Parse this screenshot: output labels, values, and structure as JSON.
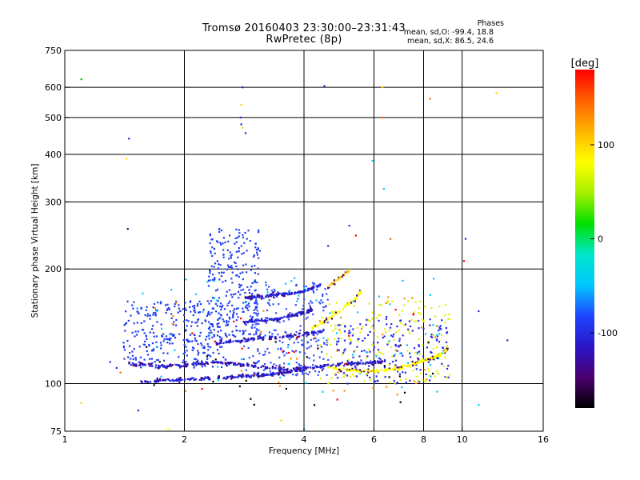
{
  "title_line1": "Tromsø 20160403 23:30:00–23:31:43",
  "title_line2": "RwPretec (8p)",
  "phases": {
    "heading": "Phases",
    "o_line": "mean, sd,O: -99.4, 18.8",
    "x_line": "mean, sd,X: 86.5, 24.6"
  },
  "chart_data": {
    "type": "scatter",
    "xlabel": "Frequency [MHz]",
    "ylabel": "Stationary phase Virtual Height [km]",
    "x_scale": "log",
    "y_scale": "log",
    "xlim": [
      1,
      16
    ],
    "ylim": [
      75,
      750
    ],
    "x_ticks": [
      1,
      2,
      4,
      6,
      8,
      10,
      16
    ],
    "y_ticks": [
      75,
      100,
      200,
      300,
      400,
      500,
      600,
      750
    ],
    "x_grid": [
      2,
      4,
      6,
      8,
      10
    ],
    "y_grid": [
      100,
      200,
      300,
      400,
      500,
      600
    ],
    "colorbar": {
      "unit": "[deg]",
      "range": [
        -180,
        180
      ],
      "ticks": [
        100,
        0,
        -100
      ],
      "colormap": [
        "#000000",
        "#4b006e",
        "#2a16c8",
        "#1e46ff",
        "#00c8ff",
        "#00e6c8",
        "#00e000",
        "#a8f000",
        "#ffff00",
        "#ffb400",
        "#ff6000",
        "#ff0000"
      ]
    },
    "traces": [
      {
        "name": "",
        "color": "#2222dd",
        "phase": -110,
        "x": [
          1.55,
          1.7,
          1.85,
          2.0,
          2.2,
          2.4,
          2.6,
          2.8,
          3.0,
          3.2,
          3.4,
          3.6,
          3.8,
          4.0
        ],
        "y": [
          101,
          101.5,
          102,
          102.5,
          103,
          103.5,
          104,
          104.5,
          105,
          105.5,
          106,
          107,
          108,
          109
        ]
      },
      {
        "name": "",
        "color": "#2222dd",
        "phase": -110,
        "x": [
          1.45,
          1.6,
          1.8,
          2.0,
          2.2,
          2.4,
          2.6,
          2.8,
          3.0,
          3.3,
          3.6,
          4.0,
          4.4,
          4.8,
          5.2,
          5.6,
          6.0,
          6.4
        ],
        "y": [
          113,
          112,
          111,
          112,
          113,
          114,
          113,
          112,
          111,
          110,
          109,
          110,
          111,
          112,
          113,
          113,
          114,
          115
        ]
      },
      {
        "name": "",
        "color": "#2222dd",
        "phase": -110,
        "x": [
          2.4,
          2.6,
          2.8,
          3.0,
          3.3,
          3.6,
          3.9,
          4.2,
          4.5
        ],
        "y": [
          128,
          129,
          130,
          131,
          132,
          133,
          134,
          136,
          138
        ]
      },
      {
        "name": "",
        "color": "#2222dd",
        "phase": -110,
        "x": [
          2.8,
          3.0,
          3.2,
          3.4,
          3.6,
          3.8,
          4.0,
          4.2
        ],
        "y": [
          145,
          146,
          147,
          148,
          150,
          152,
          154,
          157
        ]
      },
      {
        "name": "",
        "color": "#2222dd",
        "phase": -110,
        "x": [
          2.8,
          3.0,
          3.2,
          3.4,
          3.6,
          3.8,
          4.0,
          4.2,
          4.4
        ],
        "y": [
          168,
          169,
          170,
          171,
          172,
          173,
          175,
          178,
          182
        ]
      },
      {
        "name": "",
        "color": "#ffff00",
        "phase": 100,
        "x": [
          4.6,
          5.0,
          5.4,
          5.8,
          6.2,
          6.6,
          7.0,
          7.4,
          7.8,
          8.2,
          8.6,
          9.0,
          9.2
        ],
        "y": [
          110,
          109,
          108,
          108,
          108,
          109,
          110,
          112,
          114,
          116,
          118,
          121,
          124
        ]
      },
      {
        "name": "",
        "color": "#ffff00",
        "phase": 100,
        "x": [
          4.2,
          4.5,
          4.8,
          5.1,
          5.4,
          5.6
        ],
        "y": [
          140,
          146,
          152,
          160,
          168,
          176
        ]
      },
      {
        "name": "",
        "color": "#ffd21e",
        "phase": 100,
        "x": [
          4.6,
          4.8,
          5.0,
          5.2
        ],
        "y": [
          180,
          186,
          192,
          198
        ]
      }
    ],
    "clusters": [
      {
        "name": "",
        "color": "#1e3cf0",
        "phase": -105,
        "x_range": [
          1.4,
          2.6
        ],
        "y_range": [
          110,
          165
        ],
        "count": 320
      },
      {
        "name": "",
        "color": "#1e3cf0",
        "phase": -105,
        "x_range": [
          2.3,
          3.1
        ],
        "y_range": [
          130,
          260
        ],
        "count": 260
      },
      {
        "name": "",
        "color": "#3250ff",
        "phase": -100,
        "x_range": [
          2.8,
          4.6
        ],
        "y_range": [
          105,
          185
        ],
        "count": 240
      },
      {
        "name": "",
        "color": "#2a2ae6",
        "phase": -105,
        "x_range": [
          4.8,
          9.3
        ],
        "y_range": [
          100,
          150
        ],
        "count": 180
      },
      {
        "name": "",
        "color": "#e6f000",
        "phase": 90,
        "x_range": [
          4.4,
          9.4
        ],
        "y_range": [
          100,
          165
        ],
        "count": 160
      },
      {
        "name": "",
        "color": "#00c8ff",
        "phase": -60,
        "x_range": [
          1.5,
          9.0
        ],
        "y_range": [
          95,
          190
        ],
        "count": 70
      },
      {
        "name": "",
        "color": "#ff8c00",
        "phase": 140,
        "x_range": [
          1.6,
          9.0
        ],
        "y_range": [
          90,
          180
        ],
        "count": 40
      },
      {
        "name": "",
        "color": "#000000",
        "phase": -170,
        "x_range": [
          1.5,
          9.0
        ],
        "y_range": [
          84,
          130
        ],
        "count": 25
      },
      {
        "name": "",
        "color": "#ff0000",
        "phase": 170,
        "x_range": [
          2.0,
          8.0
        ],
        "y_range": [
          90,
          160
        ],
        "count": 20
      }
    ],
    "points": [
      {
        "x": 1.1,
        "y": 630,
        "color": "#00c800"
      },
      {
        "x": 1.45,
        "y": 440,
        "color": "#2222dd"
      },
      {
        "x": 1.43,
        "y": 390,
        "color": "#ffd200"
      },
      {
        "x": 1.44,
        "y": 255,
        "color": "#4b006e"
      },
      {
        "x": 2.8,
        "y": 600,
        "color": "#2222dd"
      },
      {
        "x": 2.78,
        "y": 540,
        "color": "#ffd200"
      },
      {
        "x": 2.77,
        "y": 500,
        "color": "#2222dd"
      },
      {
        "x": 2.8,
        "y": 470,
        "color": "#ffd200"
      },
      {
        "x": 2.85,
        "y": 455,
        "color": "#2222dd"
      },
      {
        "x": 2.78,
        "y": 480,
        "color": "#2222dd"
      },
      {
        "x": 4.5,
        "y": 605,
        "color": "#2222dd"
      },
      {
        "x": 5.95,
        "y": 385,
        "color": "#00c8ff"
      },
      {
        "x": 6.3,
        "y": 600,
        "color": "#ffd200"
      },
      {
        "x": 6.3,
        "y": 500,
        "color": "#ff6000"
      },
      {
        "x": 6.35,
        "y": 325,
        "color": "#00c8ff"
      },
      {
        "x": 8.3,
        "y": 560,
        "color": "#ff6000"
      },
      {
        "x": 12.2,
        "y": 580,
        "color": "#ffd200"
      },
      {
        "x": 10.2,
        "y": 240,
        "color": "#2222dd"
      },
      {
        "x": 10.1,
        "y": 210,
        "color": "#ff0000"
      },
      {
        "x": 11.0,
        "y": 155,
        "color": "#2222dd"
      },
      {
        "x": 13.0,
        "y": 130,
        "color": "#2222dd"
      },
      {
        "x": 11.0,
        "y": 88,
        "color": "#00c8ff"
      },
      {
        "x": 1.1,
        "y": 89,
        "color": "#ffd200"
      },
      {
        "x": 1.3,
        "y": 114,
        "color": "#2222dd"
      },
      {
        "x": 1.35,
        "y": 110,
        "color": "#2222dd"
      },
      {
        "x": 1.38,
        "y": 107,
        "color": "#ff6000"
      },
      {
        "x": 1.53,
        "y": 85,
        "color": "#2222dd"
      },
      {
        "x": 1.82,
        "y": 76,
        "color": "#ffff00"
      },
      {
        "x": 4.0,
        "y": 76,
        "color": "#00c8ff"
      },
      {
        "x": 3.5,
        "y": 80,
        "color": "#ffd200"
      },
      {
        "x": 4.6,
        "y": 230,
        "color": "#2222dd"
      },
      {
        "x": 5.4,
        "y": 245,
        "color": "#ff0000"
      },
      {
        "x": 6.6,
        "y": 240,
        "color": "#ff6000"
      },
      {
        "x": 5.2,
        "y": 260,
        "color": "#2222dd"
      }
    ]
  }
}
